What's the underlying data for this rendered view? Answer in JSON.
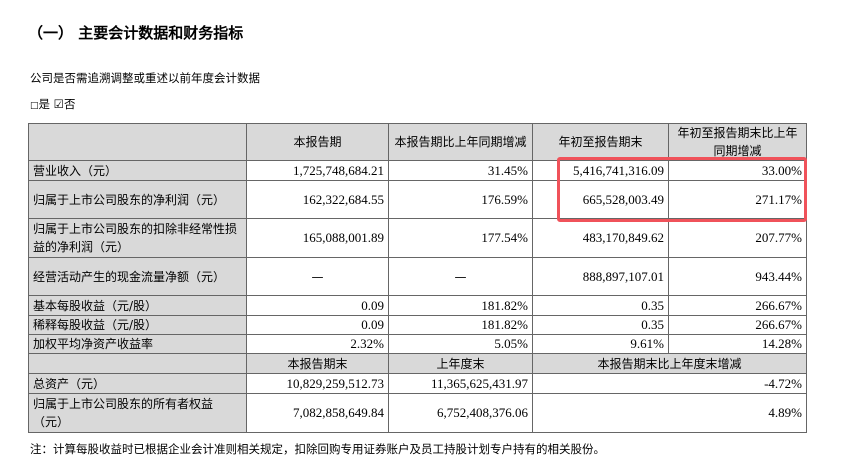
{
  "title": "（一） 主要会计数据和财务指标",
  "question": "公司是否需追溯调整或重述以前年度会计数据",
  "choice": {
    "yes_box": "□",
    "yes": "是",
    "no_box": "☑",
    "no": "否"
  },
  "header": [
    "",
    "本报告期",
    "本报告期比上年同期增减",
    "年初至报告期末",
    "年初至报告期末比上年同期增减"
  ],
  "rows": [
    [
      "营业收入（元）",
      "1,725,748,684.21",
      "31.45%",
      "5,416,741,316.09",
      "33.00%"
    ],
    [
      "归属于上市公司股东的净利润（元）",
      "162,322,684.55",
      "176.59%",
      "665,528,003.49",
      "271.17%"
    ],
    [
      "归属于上市公司股东的扣除非经常性损益的净利润（元）",
      "165,088,001.89",
      "177.54%",
      "483,170,849.62",
      "207.77%"
    ],
    [
      "经营活动产生的现金流量净额（元）",
      "—",
      "—",
      "888,897,107.01",
      "943.44%"
    ],
    [
      "基本每股收益（元/股）",
      "0.09",
      "181.82%",
      "0.35",
      "266.67%"
    ],
    [
      "稀释每股收益（元/股）",
      "0.09",
      "181.82%",
      "0.35",
      "266.67%"
    ],
    [
      "加权平均净资产收益率",
      "2.32%",
      "5.05%",
      "9.61%",
      "14.28%"
    ]
  ],
  "header2": [
    "",
    "本报告期末",
    "上年度末",
    "本报告期末比上年度末增减"
  ],
  "rows2": [
    [
      "总资产（元）",
      "10,829,259,512.73",
      "11,365,625,431.97",
      "-4.72%"
    ],
    [
      "归属于上市公司股东的所有者权益（元）",
      "7,082,858,649.84",
      "6,752,408,376.06",
      "4.89%"
    ]
  ],
  "note": "注：计算每股收益时已根据企业会计准则相关规定，扣除回购专用证券账户及员工持股计划专户持有的相关股份。",
  "highlight_color": "#f0525a"
}
